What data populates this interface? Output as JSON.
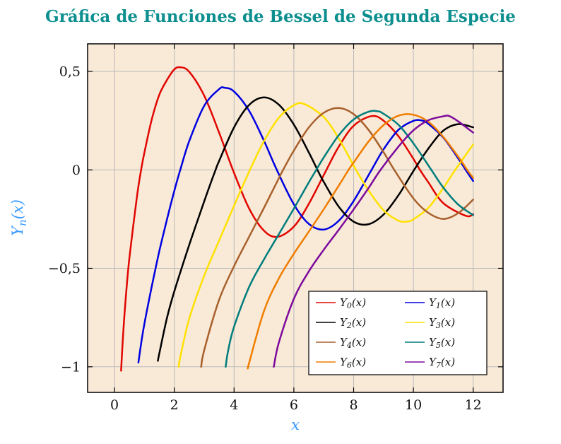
{
  "title": "Gráfica de Funciones de Bessel de Segunda Especie",
  "colors": {
    "title": "#0e8f8f",
    "axis_label": "#3b9cff",
    "background": "#f9ead8",
    "grid": "#b9b9b9",
    "frame": "#000000",
    "legend_bg": "#ffffff",
    "tick": "#000000"
  },
  "chart_data": {
    "type": "line",
    "title": "Gráfica de Funciones de Bessel de Segunda Especie",
    "xlabel": "x",
    "ylabel": "Yn(x)",
    "ylabel_parts": {
      "base": "Y",
      "sub": "n",
      "rest": "(x)"
    },
    "xlim": [
      -0.9,
      13.0
    ],
    "ylim": [
      -1.13,
      0.64
    ],
    "x_ticks": [
      0,
      2,
      4,
      6,
      8,
      10,
      12
    ],
    "x_tick_labels": [
      "0",
      "2",
      "4",
      "6",
      "8",
      "10",
      "12"
    ],
    "y_ticks": [
      0.5,
      0,
      -0.5,
      -1
    ],
    "y_tick_labels": [
      "0,5",
      "0",
      "−0,5",
      "−1"
    ],
    "grid": true,
    "legend_position": "bottom-right",
    "legend_columns": 2,
    "series": [
      {
        "name": "Y0(x)",
        "base": "Y",
        "sub": "0",
        "rest": "(x)",
        "color": "#e10600",
        "points": [
          [
            0.22,
            -1.02
          ],
          [
            0.3,
            -0.807
          ],
          [
            0.4,
            -0.606
          ],
          [
            0.5,
            -0.445
          ],
          [
            0.75,
            -0.137
          ],
          [
            0.89,
            0
          ],
          [
            1,
            0.088
          ],
          [
            1.25,
            0.258
          ],
          [
            1.5,
            0.382
          ],
          [
            1.75,
            0.455
          ],
          [
            2,
            0.51
          ],
          [
            2.2,
            0.521
          ],
          [
            2.5,
            0.498
          ],
          [
            3,
            0.377
          ],
          [
            3.5,
            0.189
          ],
          [
            3.96,
            0
          ],
          [
            4.5,
            -0.195
          ],
          [
            5,
            -0.309
          ],
          [
            5.45,
            -0.34
          ],
          [
            6,
            -0.288
          ],
          [
            6.5,
            -0.173
          ],
          [
            7.09,
            0
          ],
          [
            7.5,
            0.117
          ],
          [
            8,
            0.224
          ],
          [
            8.6,
            0.273
          ],
          [
            9,
            0.25
          ],
          [
            9.5,
            0.171
          ],
          [
            10,
            0.056
          ],
          [
            10.22,
            0
          ],
          [
            10.5,
            -0.063
          ],
          [
            11,
            -0.169
          ],
          [
            11.75,
            -0.233
          ],
          [
            12,
            -0.225
          ]
        ]
      },
      {
        "name": "Y1(x)",
        "base": "Y",
        "sub": "1",
        "rest": "(x)",
        "color": "#0000e0",
        "points": [
          [
            0.8,
            -0.978
          ],
          [
            0.9,
            -0.873
          ],
          [
            1,
            -0.781
          ],
          [
            1.25,
            -0.59
          ],
          [
            1.5,
            -0.412
          ],
          [
            1.75,
            -0.255
          ],
          [
            2,
            -0.107
          ],
          [
            2.2,
            0
          ],
          [
            2.5,
            0.146
          ],
          [
            3,
            0.325
          ],
          [
            3.5,
            0.41
          ],
          [
            3.68,
            0.417
          ],
          [
            4,
            0.398
          ],
          [
            4.5,
            0.301
          ],
          [
            5,
            0.148
          ],
          [
            5.43,
            0
          ],
          [
            6,
            -0.175
          ],
          [
            6.5,
            -0.274
          ],
          [
            7,
            -0.303
          ],
          [
            7.5,
            -0.259
          ],
          [
            8,
            -0.158
          ],
          [
            8.6,
            0
          ],
          [
            9,
            0.104
          ],
          [
            9.5,
            0.203
          ],
          [
            10,
            0.249
          ],
          [
            10.3,
            0.25
          ],
          [
            10.5,
            0.234
          ],
          [
            11,
            0.164
          ],
          [
            11.5,
            0.058
          ],
          [
            11.75,
            0
          ],
          [
            12,
            -0.057
          ]
        ]
      },
      {
        "name": "Y2(x)",
        "base": "Y",
        "sub": "2",
        "rest": "(x)",
        "color": "#000000",
        "points": [
          [
            1.45,
            -0.97
          ],
          [
            1.5,
            -0.932
          ],
          [
            1.75,
            -0.755
          ],
          [
            2,
            -0.617
          ],
          [
            2.5,
            -0.381
          ],
          [
            3,
            -0.16
          ],
          [
            3.38,
            0
          ],
          [
            3.5,
            0.045
          ],
          [
            4,
            0.216
          ],
          [
            4.5,
            0.329
          ],
          [
            5,
            0.368
          ],
          [
            5.5,
            0.331
          ],
          [
            6,
            0.23
          ],
          [
            6.5,
            0.089
          ],
          [
            6.79,
            0
          ],
          [
            7,
            -0.061
          ],
          [
            7.5,
            -0.186
          ],
          [
            8,
            -0.263
          ],
          [
            8.5,
            -0.276
          ],
          [
            9,
            -0.227
          ],
          [
            9.5,
            -0.129
          ],
          [
            10,
            -0.006
          ],
          [
            10.5,
            0.108
          ],
          [
            11,
            0.199
          ],
          [
            11.5,
            0.232
          ],
          [
            12,
            0.216
          ]
        ]
      },
      {
        "name": "Y3(x)",
        "base": "Y",
        "sub": "3",
        "rest": "(x)",
        "color": "#ffe100",
        "points": [
          [
            2.15,
            -1.0
          ],
          [
            2.2,
            -0.951
          ],
          [
            2.5,
            -0.756
          ],
          [
            3,
            -0.538
          ],
          [
            3.5,
            -0.359
          ],
          [
            4,
            -0.182
          ],
          [
            4.53,
            0
          ],
          [
            5,
            0.146
          ],
          [
            5.5,
            0.265
          ],
          [
            6,
            0.328
          ],
          [
            6.35,
            0.334
          ],
          [
            7,
            0.268
          ],
          [
            7.5,
            0.16
          ],
          [
            8.08,
            0
          ],
          [
            8.5,
            -0.104
          ],
          [
            9,
            -0.205
          ],
          [
            9.5,
            -0.258
          ],
          [
            9.8,
            -0.262
          ],
          [
            10,
            -0.251
          ],
          [
            10.5,
            -0.193
          ],
          [
            11,
            -0.092
          ],
          [
            11.4,
            0
          ],
          [
            12,
            0.129
          ]
        ]
      },
      {
        "name": "Y4(x)",
        "base": "Y",
        "sub": "4",
        "rest": "(x)",
        "color": "#a8602c",
        "points": [
          [
            2.9,
            -1.0
          ],
          [
            3,
            -0.916
          ],
          [
            3.5,
            -0.66
          ],
          [
            4,
            -0.489
          ],
          [
            4.5,
            -0.341
          ],
          [
            5,
            -0.193
          ],
          [
            5.5,
            -0.042
          ],
          [
            5.64,
            0
          ],
          [
            6,
            0.098
          ],
          [
            6.5,
            0.215
          ],
          [
            7,
            0.29
          ],
          [
            7.5,
            0.314
          ],
          [
            8,
            0.283
          ],
          [
            8.5,
            0.203
          ],
          [
            9,
            0.09
          ],
          [
            9.36,
            0
          ],
          [
            10,
            -0.145
          ],
          [
            10.5,
            -0.218
          ],
          [
            11,
            -0.249
          ],
          [
            11.5,
            -0.22
          ],
          [
            12,
            -0.151
          ]
        ]
      },
      {
        "name": "Y5(x)",
        "base": "Y",
        "sub": "5",
        "rest": "(x)",
        "color": "#007d7d",
        "points": [
          [
            3.72,
            -1.0
          ],
          [
            3.8,
            -0.92
          ],
          [
            4,
            -0.796
          ],
          [
            4.5,
            -0.596
          ],
          [
            5,
            -0.455
          ],
          [
            5.5,
            -0.326
          ],
          [
            6,
            -0.197
          ],
          [
            6.5,
            -0.064
          ],
          [
            6.75,
            0
          ],
          [
            7,
            0.063
          ],
          [
            7.5,
            0.175
          ],
          [
            8,
            0.256
          ],
          [
            8.5,
            0.295
          ],
          [
            8.8,
            0.298
          ],
          [
            9,
            0.285
          ],
          [
            9.5,
            0.229
          ],
          [
            10,
            0.135
          ],
          [
            10.6,
            0
          ],
          [
            11,
            -0.09
          ],
          [
            11.5,
            -0.176
          ],
          [
            12,
            -0.23
          ]
        ]
      },
      {
        "name": "Y6(x)",
        "base": "Y",
        "sub": "6",
        "rest": "(x)",
        "color": "#f07d00",
        "points": [
          [
            4.48,
            -1.0
          ],
          [
            4.5,
            -0.983
          ],
          [
            5,
            -0.717
          ],
          [
            5.5,
            -0.551
          ],
          [
            6,
            -0.426
          ],
          [
            6.5,
            -0.314
          ],
          [
            7,
            -0.2
          ],
          [
            7.5,
            -0.081
          ],
          [
            7.83,
            0
          ],
          [
            8,
            0.037
          ],
          [
            8.5,
            0.144
          ],
          [
            9,
            0.227
          ],
          [
            9.5,
            0.275
          ],
          [
            10,
            0.28
          ],
          [
            10.5,
            0.244
          ],
          [
            11,
            0.167
          ],
          [
            11.5,
            0.067
          ],
          [
            11.8,
            0
          ],
          [
            12,
            -0.041
          ]
        ]
      },
      {
        "name": "Y7(x)",
        "base": "Y",
        "sub": "7",
        "rest": "(x)",
        "color": "#7c0a9c",
        "points": [
          [
            5.33,
            -1.0
          ],
          [
            5.5,
            -0.876
          ],
          [
            6,
            -0.655
          ],
          [
            6.5,
            -0.516
          ],
          [
            7,
            -0.406
          ],
          [
            7.5,
            -0.305
          ],
          [
            8,
            -0.201
          ],
          [
            8.5,
            -0.092
          ],
          [
            8.9,
            0
          ],
          [
            9.5,
            0.118
          ],
          [
            10,
            0.201
          ],
          [
            10.5,
            0.252
          ],
          [
            11,
            0.272
          ],
          [
            11.2,
            0.273
          ],
          [
            11.5,
            0.246
          ],
          [
            12,
            0.189
          ]
        ]
      }
    ]
  }
}
